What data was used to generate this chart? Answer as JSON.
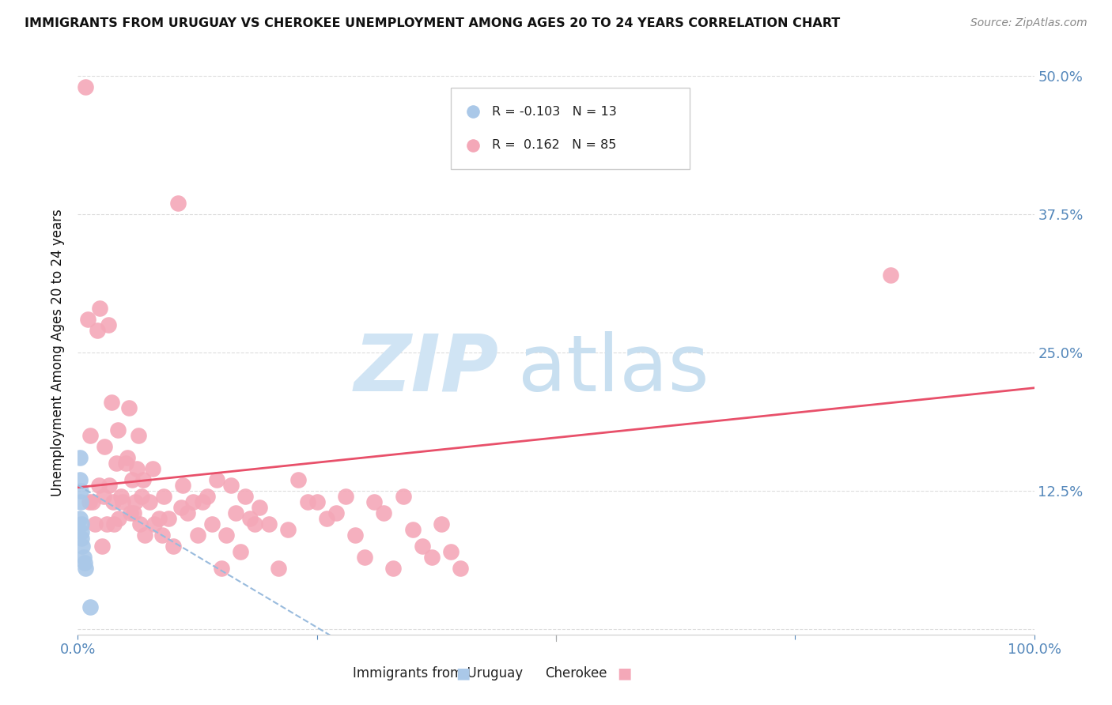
{
  "title": "IMMIGRANTS FROM URUGUAY VS CHEROKEE UNEMPLOYMENT AMONG AGES 20 TO 24 YEARS CORRELATION CHART",
  "source": "Source: ZipAtlas.com",
  "ylabel": "Unemployment Among Ages 20 to 24 years",
  "xlim": [
    0.0,
    1.0
  ],
  "ylim": [
    -0.005,
    0.505
  ],
  "yticks": [
    0.0,
    0.125,
    0.25,
    0.375,
    0.5
  ],
  "ytick_labels": [
    "",
    "12.5%",
    "25.0%",
    "37.5%",
    "50.0%"
  ],
  "xticks": [
    0.0,
    0.25,
    0.5,
    0.75,
    1.0
  ],
  "xtick_labels": [
    "0.0%",
    "",
    "",
    "",
    "100.0%"
  ],
  "watermark_text": "ZIPatlas",
  "watermark_color": "#cce0f0",
  "background_color": "#ffffff",
  "grid_color": "#dddddd",
  "title_color": "#111111",
  "axis_label_color": "#111111",
  "right_axis_color": "#5588bb",
  "blue_scatter_color": "#aac8e8",
  "pink_scatter_color": "#f4a8b8",
  "blue_line_color": "#99bbdd",
  "pink_line_color": "#e8506a",
  "legend_blue_label": "R = -0.103   N = 13",
  "legend_pink_label": "R =  0.162   N = 85",
  "legend_bottom_blue": "Immigrants from Uruguay",
  "legend_bottom_pink": "Cherokee",
  "blue_points_x": [
    0.002,
    0.002,
    0.002,
    0.003,
    0.003,
    0.004,
    0.004,
    0.004,
    0.005,
    0.006,
    0.007,
    0.008,
    0.013
  ],
  "blue_points_y": [
    0.155,
    0.135,
    0.1,
    0.125,
    0.115,
    0.095,
    0.088,
    0.082,
    0.075,
    0.065,
    0.06,
    0.055,
    0.02
  ],
  "pink_points_x": [
    0.008,
    0.01,
    0.012,
    0.013,
    0.015,
    0.018,
    0.02,
    0.022,
    0.023,
    0.025,
    0.027,
    0.028,
    0.03,
    0.032,
    0.033,
    0.035,
    0.037,
    0.038,
    0.04,
    0.042,
    0.043,
    0.045,
    0.047,
    0.05,
    0.052,
    0.053,
    0.055,
    0.057,
    0.058,
    0.06,
    0.062,
    0.063,
    0.065,
    0.067,
    0.068,
    0.07,
    0.075,
    0.078,
    0.08,
    0.085,
    0.088,
    0.09,
    0.095,
    0.1,
    0.105,
    0.108,
    0.11,
    0.115,
    0.12,
    0.125,
    0.13,
    0.135,
    0.14,
    0.145,
    0.15,
    0.155,
    0.16,
    0.165,
    0.17,
    0.175,
    0.18,
    0.185,
    0.19,
    0.2,
    0.21,
    0.22,
    0.23,
    0.24,
    0.25,
    0.26,
    0.27,
    0.28,
    0.29,
    0.3,
    0.31,
    0.32,
    0.33,
    0.34,
    0.35,
    0.36,
    0.37,
    0.38,
    0.39,
    0.4,
    0.85
  ],
  "pink_points_y": [
    0.49,
    0.28,
    0.115,
    0.175,
    0.115,
    0.095,
    0.27,
    0.13,
    0.29,
    0.075,
    0.12,
    0.165,
    0.095,
    0.275,
    0.13,
    0.205,
    0.115,
    0.095,
    0.15,
    0.18,
    0.1,
    0.12,
    0.115,
    0.15,
    0.155,
    0.2,
    0.105,
    0.135,
    0.105,
    0.115,
    0.145,
    0.175,
    0.095,
    0.12,
    0.135,
    0.085,
    0.115,
    0.145,
    0.095,
    0.1,
    0.085,
    0.12,
    0.1,
    0.075,
    0.385,
    0.11,
    0.13,
    0.105,
    0.115,
    0.085,
    0.115,
    0.12,
    0.095,
    0.135,
    0.055,
    0.085,
    0.13,
    0.105,
    0.07,
    0.12,
    0.1,
    0.095,
    0.11,
    0.095,
    0.055,
    0.09,
    0.135,
    0.115,
    0.115,
    0.1,
    0.105,
    0.12,
    0.085,
    0.065,
    0.115,
    0.105,
    0.055,
    0.12,
    0.09,
    0.075,
    0.065,
    0.095,
    0.07,
    0.055,
    0.32
  ]
}
